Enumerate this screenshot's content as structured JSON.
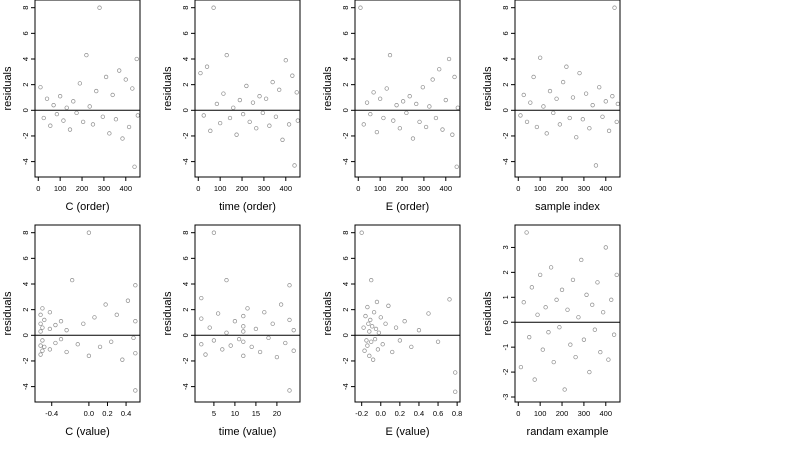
{
  "chart_data": [
    {
      "type": "scatter",
      "xlabel": "C (order)",
      "ylabel": "residuals",
      "xticks": [
        "0",
        "100",
        "200",
        "300",
        "400"
      ],
      "yticks": [
        "-4",
        "-2",
        "0",
        "2",
        "4",
        "6",
        "8"
      ],
      "xlim": [
        -15,
        465
      ],
      "ylim": [
        -5.2,
        8.6
      ],
      "reference_line_y": 0,
      "points": [
        [
          10,
          1.8
        ],
        [
          25,
          -0.6
        ],
        [
          40,
          0.9
        ],
        [
          55,
          -1.2
        ],
        [
          70,
          0.4
        ],
        [
          85,
          -0.3
        ],
        [
          100,
          1.1
        ],
        [
          115,
          -0.8
        ],
        [
          130,
          0.2
        ],
        [
          145,
          -1.5
        ],
        [
          160,
          0.7
        ],
        [
          175,
          -0.2
        ],
        [
          190,
          2.1
        ],
        [
          205,
          -0.9
        ],
        [
          220,
          4.3
        ],
        [
          235,
          0.3
        ],
        [
          250,
          -1.1
        ],
        [
          265,
          1.5
        ],
        [
          280,
          8.0
        ],
        [
          295,
          -0.5
        ],
        [
          310,
          2.6
        ],
        [
          325,
          -1.8
        ],
        [
          340,
          1.2
        ],
        [
          355,
          -0.7
        ],
        [
          370,
          3.1
        ],
        [
          385,
          -2.2
        ],
        [
          400,
          2.4
        ],
        [
          415,
          -1.3
        ],
        [
          430,
          1.7
        ],
        [
          440,
          -4.4
        ],
        [
          450,
          4.0
        ],
        [
          455,
          -0.4
        ]
      ]
    },
    {
      "type": "scatter",
      "xlabel": "time (order)",
      "ylabel": "residuals",
      "xticks": [
        "0",
        "100",
        "200",
        "300",
        "400"
      ],
      "yticks": [
        "-4",
        "-2",
        "0",
        "2",
        "4",
        "6",
        "8"
      ],
      "xlim": [
        -15,
        465
      ],
      "ylim": [
        -5.2,
        8.6
      ],
      "reference_line_y": 0,
      "points": [
        [
          10,
          2.9
        ],
        [
          25,
          -0.4
        ],
        [
          40,
          3.4
        ],
        [
          55,
          -1.6
        ],
        [
          70,
          8.0
        ],
        [
          85,
          0.5
        ],
        [
          100,
          -1.0
        ],
        [
          115,
          1.3
        ],
        [
          130,
          4.3
        ],
        [
          145,
          -0.6
        ],
        [
          160,
          0.2
        ],
        [
          175,
          -1.9
        ],
        [
          190,
          0.8
        ],
        [
          205,
          -0.3
        ],
        [
          220,
          1.9
        ],
        [
          235,
          -0.9
        ],
        [
          250,
          0.6
        ],
        [
          265,
          -1.4
        ],
        [
          280,
          1.1
        ],
        [
          295,
          -0.2
        ],
        [
          310,
          0.9
        ],
        [
          325,
          -1.2
        ],
        [
          340,
          2.2
        ],
        [
          355,
          -0.5
        ],
        [
          370,
          1.6
        ],
        [
          385,
          -2.3
        ],
        [
          400,
          3.9
        ],
        [
          415,
          -1.1
        ],
        [
          430,
          2.7
        ],
        [
          440,
          -4.3
        ],
        [
          450,
          1.4
        ],
        [
          455,
          -0.8
        ]
      ]
    },
    {
      "type": "scatter",
      "xlabel": "E (order)",
      "ylabel": "residuals",
      "xticks": [
        "0",
        "100",
        "200",
        "300",
        "400"
      ],
      "yticks": [
        "-4",
        "-2",
        "0",
        "2",
        "4",
        "6",
        "8"
      ],
      "xlim": [
        -15,
        465
      ],
      "ylim": [
        -5.2,
        8.6
      ],
      "reference_line_y": 0,
      "points": [
        [
          10,
          8.0
        ],
        [
          25,
          -1.1
        ],
        [
          40,
          0.6
        ],
        [
          55,
          -0.3
        ],
        [
          70,
          1.4
        ],
        [
          85,
          -1.7
        ],
        [
          100,
          0.9
        ],
        [
          115,
          -0.6
        ],
        [
          130,
          1.7
        ],
        [
          145,
          4.3
        ],
        [
          160,
          -0.8
        ],
        [
          175,
          0.4
        ],
        [
          190,
          -1.4
        ],
        [
          205,
          0.7
        ],
        [
          220,
          -0.2
        ],
        [
          235,
          1.1
        ],
        [
          250,
          -2.2
        ],
        [
          265,
          0.5
        ],
        [
          280,
          -0.9
        ],
        [
          295,
          1.8
        ],
        [
          310,
          -1.3
        ],
        [
          325,
          0.3
        ],
        [
          340,
          2.4
        ],
        [
          355,
          -0.6
        ],
        [
          370,
          3.2
        ],
        [
          385,
          -1.5
        ],
        [
          400,
          0.8
        ],
        [
          415,
          4.0
        ],
        [
          430,
          -1.9
        ],
        [
          440,
          2.6
        ],
        [
          450,
          -4.4
        ],
        [
          455,
          0.2
        ]
      ]
    },
    {
      "type": "scatter",
      "xlabel": "sample index",
      "ylabel": "residuals",
      "xticks": [
        "0",
        "100",
        "200",
        "300",
        "400"
      ],
      "yticks": [
        "-4",
        "-2",
        "0",
        "2",
        "4",
        "6",
        "8"
      ],
      "xlim": [
        -15,
        465
      ],
      "ylim": [
        -5.2,
        8.6
      ],
      "reference_line_y": 0,
      "points": [
        [
          10,
          -0.4
        ],
        [
          25,
          1.2
        ],
        [
          40,
          -0.9
        ],
        [
          55,
          0.6
        ],
        [
          70,
          2.6
        ],
        [
          85,
          -1.3
        ],
        [
          100,
          4.1
        ],
        [
          115,
          0.3
        ],
        [
          130,
          -1.8
        ],
        [
          145,
          1.5
        ],
        [
          160,
          -0.2
        ],
        [
          175,
          0.9
        ],
        [
          190,
          -1.1
        ],
        [
          205,
          2.2
        ],
        [
          220,
          3.4
        ],
        [
          235,
          -0.6
        ],
        [
          250,
          1.0
        ],
        [
          265,
          -2.1
        ],
        [
          280,
          2.9
        ],
        [
          295,
          -0.7
        ],
        [
          310,
          1.3
        ],
        [
          325,
          -1.4
        ],
        [
          340,
          0.4
        ],
        [
          355,
          -4.3
        ],
        [
          370,
          1.8
        ],
        [
          385,
          -0.5
        ],
        [
          400,
          0.7
        ],
        [
          415,
          -1.6
        ],
        [
          430,
          1.1
        ],
        [
          440,
          8.0
        ],
        [
          450,
          -0.9
        ],
        [
          455,
          0.5
        ]
      ]
    },
    {
      "type": "scatter",
      "xlabel": "C (value)",
      "ylabel": "residuals",
      "xticks": [
        "-0.4",
        "0.0",
        "0.2",
        "0.4"
      ],
      "yticks": [
        "-4",
        "-2",
        "0",
        "2",
        "4",
        "6",
        "8"
      ],
      "xlim": [
        -0.58,
        0.55
      ],
      "ylim": [
        -5.2,
        8.6
      ],
      "reference_line_y": 0,
      "points": [
        [
          -0.52,
          1.6
        ],
        [
          -0.52,
          -0.8
        ],
        [
          -0.52,
          0.9
        ],
        [
          -0.52,
          -1.5
        ],
        [
          -0.52,
          0.3
        ],
        [
          -0.5,
          2.1
        ],
        [
          -0.5,
          -0.4
        ],
        [
          -0.5,
          -1.2
        ],
        [
          -0.5,
          0.6
        ],
        [
          -0.48,
          1.2
        ],
        [
          -0.48,
          -0.9
        ],
        [
          -0.42,
          0.5
        ],
        [
          -0.42,
          -1.1
        ],
        [
          -0.42,
          1.8
        ],
        [
          -0.36,
          -0.6
        ],
        [
          -0.36,
          0.8
        ],
        [
          -0.3,
          -0.3
        ],
        [
          -0.3,
          1.1
        ],
        [
          -0.24,
          -1.3
        ],
        [
          -0.24,
          0.4
        ],
        [
          -0.18,
          4.3
        ],
        [
          -0.12,
          -0.7
        ],
        [
          -0.06,
          0.9
        ],
        [
          0.0,
          -1.6
        ],
        [
          0.0,
          8.0
        ],
        [
          0.06,
          1.4
        ],
        [
          0.12,
          -0.9
        ],
        [
          0.18,
          2.4
        ],
        [
          0.24,
          -0.5
        ],
        [
          0.3,
          1.6
        ],
        [
          0.36,
          -1.9
        ],
        [
          0.42,
          2.7
        ],
        [
          0.48,
          -0.2
        ],
        [
          0.5,
          3.9
        ],
        [
          0.5,
          -4.3
        ],
        [
          0.5,
          1.1
        ],
        [
          0.5,
          -1.4
        ]
      ]
    },
    {
      "type": "scatter",
      "xlabel": "time (value)",
      "ylabel": "residuals",
      "xticks": [
        "5",
        "10",
        "15",
        "20"
      ],
      "yticks": [
        "-4",
        "-2",
        "0",
        "2",
        "4",
        "6",
        "8"
      ],
      "xlim": [
        0.5,
        25.5
      ],
      "ylim": [
        -5.2,
        8.6
      ],
      "reference_line_y": 0,
      "points": [
        [
          2,
          2.9
        ],
        [
          2,
          -0.7
        ],
        [
          2,
          1.3
        ],
        [
          3,
          -1.5
        ],
        [
          4,
          0.6
        ],
        [
          5,
          8.0
        ],
        [
          5,
          -0.4
        ],
        [
          6,
          1.7
        ],
        [
          7,
          -1.1
        ],
        [
          8,
          4.3
        ],
        [
          8,
          0.2
        ],
        [
          9,
          -0.8
        ],
        [
          10,
          1.1
        ],
        [
          11,
          -0.3
        ],
        [
          12,
          0.7
        ],
        [
          12,
          -1.6
        ],
        [
          12,
          1.5
        ],
        [
          12,
          -0.5
        ],
        [
          12,
          0.3
        ],
        [
          13,
          2.1
        ],
        [
          14,
          -0.9
        ],
        [
          15,
          0.5
        ],
        [
          16,
          -1.3
        ],
        [
          17,
          1.8
        ],
        [
          18,
          -0.2
        ],
        [
          19,
          0.9
        ],
        [
          20,
          -1.7
        ],
        [
          21,
          2.4
        ],
        [
          22,
          -0.6
        ],
        [
          23,
          3.9
        ],
        [
          23,
          -4.3
        ],
        [
          23,
          1.2
        ],
        [
          24,
          -1.2
        ],
        [
          24,
          0.4
        ]
      ]
    },
    {
      "type": "scatter",
      "xlabel": "E (value)",
      "ylabel": "residuals",
      "xticks": [
        "-0.2",
        "0.0",
        "0.2",
        "0.4",
        "0.6",
        "0.8"
      ],
      "yticks": [
        "-4",
        "-2",
        "0",
        "2",
        "4",
        "6",
        "8"
      ],
      "xlim": [
        -0.27,
        0.83
      ],
      "ylim": [
        -5.2,
        8.6
      ],
      "reference_line_y": 0,
      "points": [
        [
          -0.2,
          8.0
        ],
        [
          -0.18,
          0.6
        ],
        [
          -0.17,
          -1.2
        ],
        [
          -0.16,
          1.5
        ],
        [
          -0.15,
          -0.4
        ],
        [
          -0.14,
          2.2
        ],
        [
          -0.14,
          -0.8
        ],
        [
          -0.13,
          0.9
        ],
        [
          -0.12,
          -1.6
        ],
        [
          -0.12,
          0.3
        ],
        [
          -0.11,
          1.2
        ],
        [
          -0.1,
          -0.5
        ],
        [
          -0.1,
          4.3
        ],
        [
          -0.09,
          0.7
        ],
        [
          -0.08,
          -1.9
        ],
        [
          -0.07,
          1.8
        ],
        [
          -0.06,
          -0.3
        ],
        [
          -0.05,
          0.5
        ],
        [
          -0.04,
          2.6
        ],
        [
          -0.03,
          -1.1
        ],
        [
          -0.02,
          0.2
        ],
        [
          0.0,
          1.4
        ],
        [
          0.02,
          -0.7
        ],
        [
          0.05,
          0.9
        ],
        [
          0.08,
          2.3
        ],
        [
          0.12,
          -1.3
        ],
        [
          0.16,
          0.6
        ],
        [
          0.2,
          -0.4
        ],
        [
          0.25,
          1.1
        ],
        [
          0.32,
          -0.9
        ],
        [
          0.4,
          0.4
        ],
        [
          0.5,
          1.7
        ],
        [
          0.6,
          -0.5
        ],
        [
          0.72,
          2.8
        ],
        [
          0.78,
          -2.9
        ],
        [
          0.78,
          -4.4
        ]
      ]
    },
    {
      "type": "scatter",
      "xlabel": "randam example",
      "ylabel": "residuals",
      "xticks": [
        "0",
        "100",
        "200",
        "300",
        "400"
      ],
      "yticks": [
        "-3",
        "-2",
        "-1",
        "0",
        "1",
        "2",
        "3"
      ],
      "xlim": [
        -15,
        465
      ],
      "ylim": [
        -3.2,
        3.9
      ],
      "reference_line_y": 0,
      "points": [
        [
          12,
          -1.8
        ],
        [
          25,
          0.8
        ],
        [
          38,
          3.6
        ],
        [
          50,
          -0.6
        ],
        [
          62,
          1.4
        ],
        [
          75,
          -2.3
        ],
        [
          88,
          0.3
        ],
        [
          100,
          1.9
        ],
        [
          112,
          -1.1
        ],
        [
          125,
          0.6
        ],
        [
          138,
          -0.4
        ],
        [
          150,
          2.2
        ],
        [
          162,
          -1.6
        ],
        [
          175,
          0.9
        ],
        [
          188,
          -0.2
        ],
        [
          200,
          1.3
        ],
        [
          212,
          -2.7
        ],
        [
          225,
          0.5
        ],
        [
          238,
          -0.9
        ],
        [
          250,
          1.7
        ],
        [
          262,
          -1.4
        ],
        [
          275,
          0.2
        ],
        [
          288,
          2.5
        ],
        [
          300,
          -0.7
        ],
        [
          312,
          1.1
        ],
        [
          325,
          -2.0
        ],
        [
          338,
          0.7
        ],
        [
          350,
          -0.3
        ],
        [
          362,
          1.6
        ],
        [
          375,
          -1.2
        ],
        [
          388,
          0.4
        ],
        [
          400,
          3.0
        ],
        [
          412,
          -1.5
        ],
        [
          425,
          0.9
        ],
        [
          438,
          -0.5
        ],
        [
          450,
          1.9
        ]
      ]
    }
  ]
}
